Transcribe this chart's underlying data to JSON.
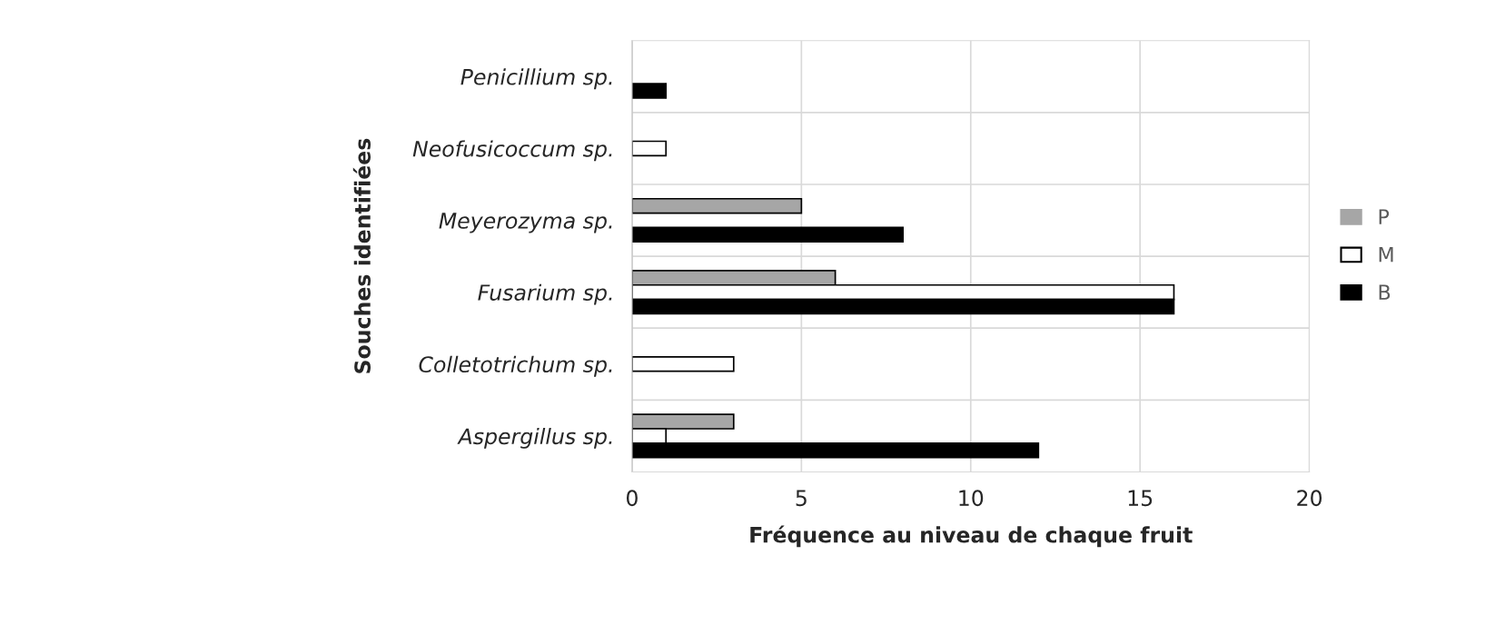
{
  "chart_data": {
    "type": "bar",
    "orientation": "horizontal",
    "xlabel": "Fréquence au niveau de chaque fruit",
    "ylabel": "Souches identifiées",
    "categories": [
      "Penicillium sp.",
      "Neofusicoccum sp.",
      "Meyerozyma sp.",
      "Fusarium sp.",
      "Colletotrichum sp.",
      "Aspergillus sp."
    ],
    "series": [
      {
        "name": "P",
        "color": "#a6a6a6",
        "values": [
          null,
          null,
          5,
          6,
          null,
          3
        ]
      },
      {
        "name": "M",
        "color": "#ffffff",
        "values": [
          null,
          1,
          null,
          16,
          3,
          1
        ]
      },
      {
        "name": "B",
        "color": "#000000",
        "values": [
          1,
          null,
          8,
          16,
          null,
          12
        ]
      }
    ],
    "xlim": [
      0,
      20
    ],
    "xticks": [
      0,
      5,
      10,
      15,
      20
    ],
    "grid": true,
    "legend": "right"
  }
}
